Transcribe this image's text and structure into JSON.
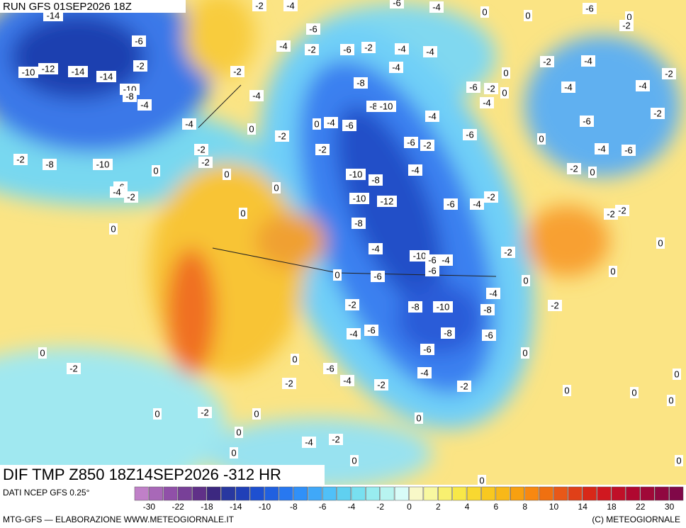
{
  "header": {
    "run": "RUN GFS 01SEP2026 18Z",
    "title": "DIF TMP Z850 18Z14SEP2026 -312 HR"
  },
  "map": {
    "contour_labels": [
      -14,
      -10,
      -12,
      -14,
      -14,
      -6,
      -2,
      -10,
      -8,
      -4,
      -4,
      -2,
      -2,
      -2,
      -4,
      -2,
      -4,
      -6,
      -4,
      -2,
      -6,
      -2,
      -4,
      -4,
      -4,
      -8,
      -8,
      -10,
      -4,
      -6,
      -4,
      0,
      0,
      -2,
      -2,
      -6,
      -2,
      -6,
      -4,
      -10,
      -8,
      -10,
      -12,
      -6,
      -4,
      -2,
      -8,
      -4,
      -10,
      -6,
      -4,
      -6,
      0,
      -6,
      -2,
      -4,
      -2,
      -8,
      -10,
      -8,
      -8,
      -6,
      -4,
      -6,
      -6,
      -6,
      -4,
      -2,
      -4,
      -2,
      -2,
      0,
      0,
      -2,
      0,
      0,
      0,
      -4,
      -2,
      0,
      0,
      0,
      -2,
      0,
      0,
      0,
      -2,
      -2,
      0,
      -2,
      0,
      -4,
      -6,
      -2,
      -6,
      -4,
      -4,
      -2,
      -4,
      -2,
      0,
      0,
      -6,
      -2,
      -4,
      -6,
      0,
      -2,
      0,
      0,
      -4,
      -6,
      -2,
      -8,
      -10,
      0,
      0,
      0,
      0,
      0,
      -6,
      -4,
      -2,
      0,
      -2,
      0,
      0,
      0,
      0,
      0,
      0
    ]
  },
  "legend": {
    "source": "DATI NCEP GFS 0.25°",
    "colors": [
      "#c080c8",
      "#a868b8",
      "#9050a8",
      "#784098",
      "#603088",
      "#3c2880",
      "#2838a0",
      "#2040b8",
      "#1e50d0",
      "#2060e0",
      "#2878f0",
      "#3090f8",
      "#40a8f8",
      "#50c0f8",
      "#60d0f0",
      "#78e0f0",
      "#98ecf0",
      "#b8f4f0",
      "#d8fcf8",
      "#f8f8c8",
      "#f8f8a0",
      "#f8f070",
      "#f8e848",
      "#f8d830",
      "#f8c820",
      "#f8b818",
      "#f8a010",
      "#f88810",
      "#f07010",
      "#e85818",
      "#e04018",
      "#d82818",
      "#d01820",
      "#c01028",
      "#b00830",
      "#a00838",
      "#900840",
      "#800848"
    ],
    "labels": [
      -30,
      -22,
      -18,
      -14,
      -10,
      -8,
      -6,
      -4,
      -2,
      0,
      2,
      4,
      6,
      8,
      10,
      14,
      18,
      22,
      30
    ]
  },
  "footer": {
    "left": "MTG-GFS — ELABORAZIONE WWW.METEOGIORNALE.IT",
    "right": "(C) METEOGIORNALE"
  }
}
